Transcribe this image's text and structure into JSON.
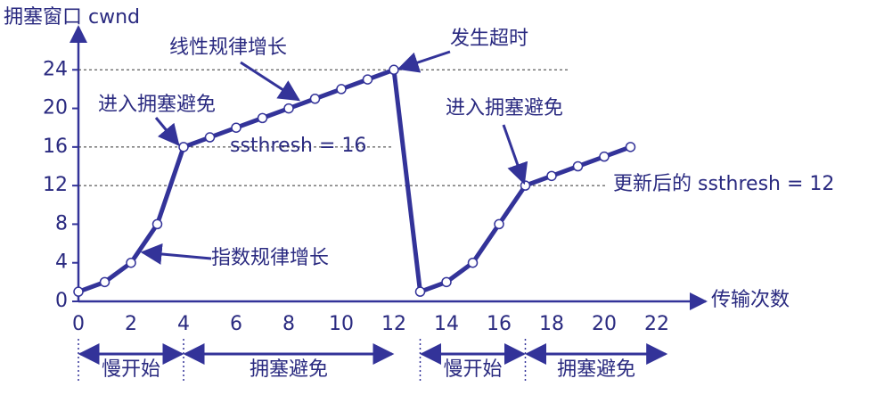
{
  "chart_data": {
    "type": "line",
    "ylabel": "拥塞窗口 cwnd",
    "xlabel": "传输次数",
    "x": [
      0,
      1,
      2,
      3,
      4,
      5,
      6,
      7,
      8,
      9,
      10,
      11,
      12,
      13,
      14,
      15,
      16,
      17,
      18,
      19,
      20,
      21
    ],
    "series": [
      {
        "color": "#333399",
        "values": [
          1,
          2,
          4,
          8,
          16,
          17,
          18,
          19,
          20,
          21,
          22,
          23,
          24,
          1,
          2,
          4,
          8,
          12,
          13,
          14,
          15,
          16
        ]
      }
    ],
    "xlim": [
      0,
      24
    ],
    "ylim": [
      0,
      28
    ],
    "xticks": [
      0,
      2,
      4,
      6,
      8,
      10,
      12,
      14,
      16,
      18,
      20,
      22
    ],
    "yticks": [
      0,
      4,
      8,
      12,
      16,
      20,
      24
    ],
    "hlines": [
      24,
      16,
      12
    ],
    "annotations": [
      "线性规律增长",
      "发生超时",
      "进入拥塞避免",
      "ssthresh = 16",
      "进入拥塞避免",
      "更新后的 ssthresh = 12",
      "指数规律增长"
    ],
    "phases": [
      {
        "label": "慢开始",
        "start": 0,
        "end": 4
      },
      {
        "label": "拥塞避免",
        "start": 4,
        "end": 12
      },
      {
        "label": "慢开始",
        "start": 13,
        "end": 17
      },
      {
        "label": "拥塞避免",
        "start": 17,
        "end": 22.4
      }
    ]
  }
}
